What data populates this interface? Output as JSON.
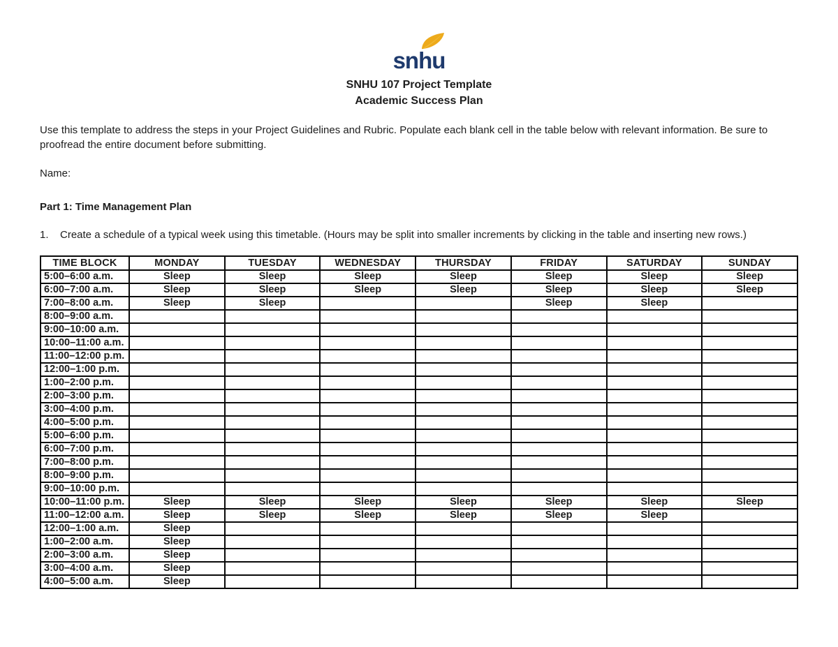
{
  "logo": {
    "text": "snhu",
    "navy": "#1e3a6d",
    "gold": "#edaa1b"
  },
  "header": {
    "title_line1": "SNHU 107 Project Template",
    "title_line2": "Academic Success Plan"
  },
  "intro_text": "Use this template to address the steps in your Project Guidelines and Rubric. Populate each blank cell in the table below with relevant information. Be sure to proofread the entire document before submitting.",
  "name_label": "Name:",
  "part1": {
    "heading": "Part 1: Time Management Plan",
    "item_number": "1.",
    "item_text": "Create a schedule of a typical week using this timetable. (Hours may be split into smaller increments by clicking in the table and inserting new rows.)"
  },
  "table": {
    "headers": [
      "TIME BLOCK",
      "MONDAY",
      "TUESDAY",
      "WEDNESDAY",
      "THURSDAY",
      "FRIDAY",
      "SATURDAY",
      "SUNDAY"
    ],
    "rows": [
      {
        "time": "5:00–6:00 a.m.",
        "cells": [
          "Sleep",
          "Sleep",
          "Sleep",
          "Sleep",
          "Sleep",
          "Sleep",
          "Sleep"
        ]
      },
      {
        "time": "6:00–7:00 a.m.",
        "cells": [
          "Sleep",
          "Sleep",
          "Sleep",
          "Sleep",
          "Sleep",
          "Sleep",
          "Sleep"
        ]
      },
      {
        "time": "7:00–8:00 a.m.",
        "cells": [
          "Sleep",
          "Sleep",
          "",
          "",
          "Sleep",
          "Sleep",
          ""
        ]
      },
      {
        "time": "8:00–9:00 a.m.",
        "cells": [
          "",
          "",
          "",
          "",
          "",
          "",
          ""
        ]
      },
      {
        "time": "9:00–10:00 a.m.",
        "cells": [
          "",
          "",
          "",
          "",
          "",
          "",
          ""
        ]
      },
      {
        "time": "10:00–11:00 a.m.",
        "cells": [
          "",
          "",
          "",
          "",
          "",
          "",
          ""
        ]
      },
      {
        "time": "11:00–12:00 p.m.",
        "cells": [
          "",
          "",
          "",
          "",
          "",
          "",
          ""
        ]
      },
      {
        "time": "12:00–1:00 p.m.",
        "cells": [
          "",
          "",
          "",
          "",
          "",
          "",
          ""
        ]
      },
      {
        "time": "1:00–2:00 p.m.",
        "cells": [
          "",
          "",
          "",
          "",
          "",
          "",
          ""
        ]
      },
      {
        "time": "2:00–3:00 p.m.",
        "cells": [
          "",
          "",
          "",
          "",
          "",
          "",
          ""
        ]
      },
      {
        "time": "3:00–4:00 p.m.",
        "cells": [
          "",
          "",
          "",
          "",
          "",
          "",
          ""
        ]
      },
      {
        "time": "4:00–5:00 p.m.",
        "cells": [
          "",
          "",
          "",
          "",
          "",
          "",
          ""
        ]
      },
      {
        "time": "5:00–6:00 p.m.",
        "cells": [
          "",
          "",
          "",
          "",
          "",
          "",
          ""
        ]
      },
      {
        "time": "6:00–7:00 p.m.",
        "cells": [
          "",
          "",
          "",
          "",
          "",
          "",
          ""
        ]
      },
      {
        "time": "7:00–8:00 p.m.",
        "cells": [
          "",
          "",
          "",
          "",
          "",
          "",
          ""
        ]
      },
      {
        "time": "8:00–9:00 p.m.",
        "cells": [
          "",
          "",
          "",
          "",
          "",
          "",
          ""
        ]
      },
      {
        "time": "9:00–10:00 p.m.",
        "cells": [
          "",
          "",
          "",
          "",
          "",
          "",
          ""
        ]
      },
      {
        "time": "10:00–11:00 p.m.",
        "cells": [
          "Sleep",
          "Sleep",
          "Sleep",
          "Sleep",
          "Sleep",
          "Sleep",
          "Sleep"
        ]
      },
      {
        "time": "11:00–12:00 a.m.",
        "cells": [
          "Sleep",
          "Sleep",
          "Sleep",
          "Sleep",
          "Sleep",
          "Sleep",
          ""
        ]
      },
      {
        "time": "12:00–1:00 a.m.",
        "cells": [
          "Sleep",
          "",
          "",
          "",
          "",
          "",
          ""
        ]
      },
      {
        "time": "1:00–2:00 a.m.",
        "cells": [
          "Sleep",
          "",
          "",
          "",
          "",
          "",
          ""
        ]
      },
      {
        "time": "2:00–3:00 a.m.",
        "cells": [
          "Sleep",
          "",
          "",
          "",
          "",
          "",
          ""
        ]
      },
      {
        "time": "3:00–4:00 a.m.",
        "cells": [
          "Sleep",
          "",
          "",
          "",
          "",
          "",
          ""
        ]
      },
      {
        "time": "4:00–5:00 a.m.",
        "cells": [
          "Sleep",
          "",
          "",
          "",
          "",
          "",
          ""
        ]
      }
    ]
  }
}
